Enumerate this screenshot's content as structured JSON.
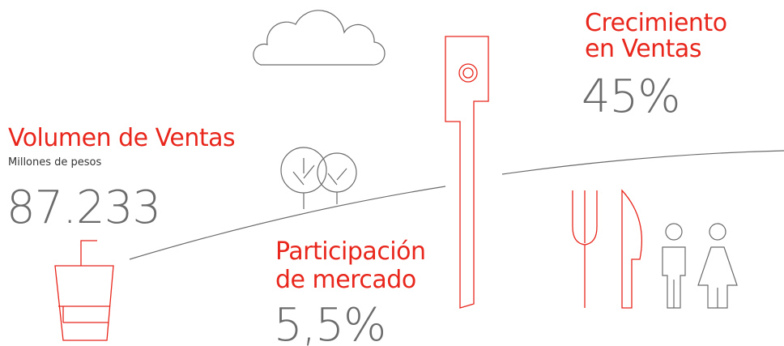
{
  "infographic": {
    "growth": {
      "title_lines": [
        "Crecimiento",
        "en Ventas"
      ],
      "value": "45%"
    },
    "volume": {
      "title": "Volumen de Ventas",
      "subtitle": "Millones de pesos",
      "value": "87.233"
    },
    "share": {
      "title_lines": [
        "Participación",
        "de mercado"
      ],
      "value": "5,5%"
    }
  }
}
